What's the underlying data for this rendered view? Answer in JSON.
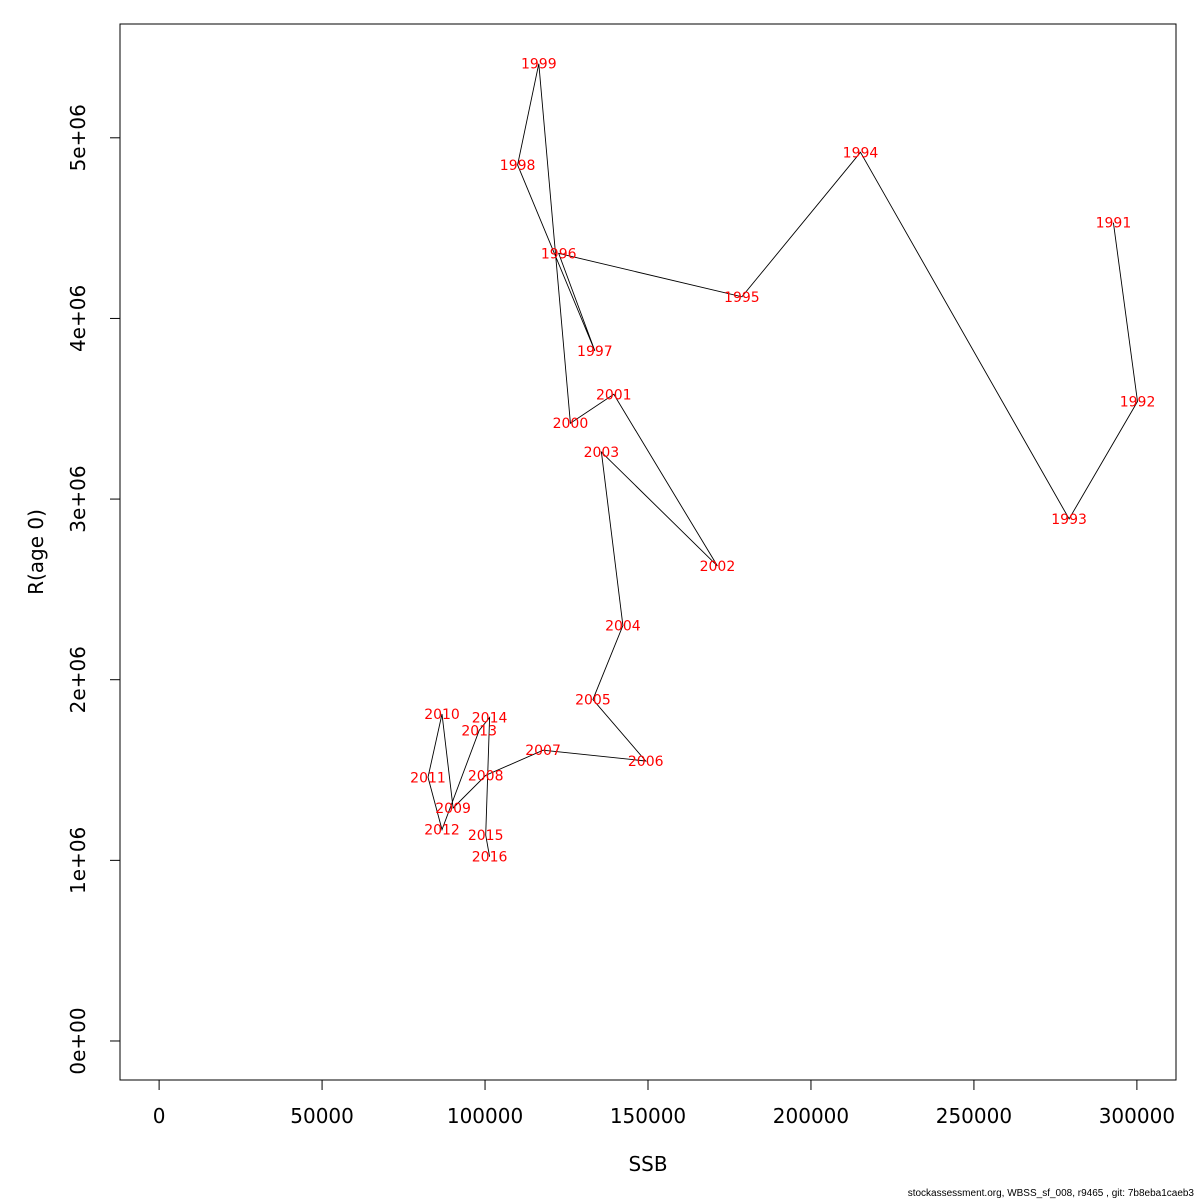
{
  "chart_data": {
    "type": "line",
    "xlabel": "SSB",
    "ylabel": "R(age 0)",
    "xlim": [
      -12000,
      312000
    ],
    "ylim": [
      -216000,
      5630000
    ],
    "x_ticks": [
      0,
      50000,
      100000,
      150000,
      200000,
      250000,
      300000
    ],
    "x_tick_labels": [
      "0",
      "50000",
      "100000",
      "150000",
      "200000",
      "250000",
      "300000"
    ],
    "y_ticks": [
      0,
      1000000,
      2000000,
      3000000,
      4000000,
      5000000
    ],
    "y_tick_labels": [
      "0e+00",
      "1e+06",
      "2e+06",
      "3e+06",
      "4e+06",
      "5e+06"
    ],
    "line_color": "#000000",
    "label_color": "#ff0000",
    "points": [
      {
        "label": "1991",
        "x": 292800,
        "y": 4530000
      },
      {
        "label": "1992",
        "x": 300200,
        "y": 3540000
      },
      {
        "label": "1993",
        "x": 279200,
        "y": 2890000
      },
      {
        "label": "1994",
        "x": 215200,
        "y": 4920000
      },
      {
        "label": "1995",
        "x": 178800,
        "y": 4120000
      },
      {
        "label": "1996",
        "x": 122600,
        "y": 4360000
      },
      {
        "label": "1997",
        "x": 133700,
        "y": 3820000
      },
      {
        "label": "1998",
        "x": 110000,
        "y": 4850000
      },
      {
        "label": "1999",
        "x": 116500,
        "y": 5410000
      },
      {
        "label": "2000",
        "x": 126200,
        "y": 3420000
      },
      {
        "label": "2001",
        "x": 139500,
        "y": 3580000
      },
      {
        "label": "2002",
        "x": 171300,
        "y": 2630000
      },
      {
        "label": "2003",
        "x": 135700,
        "y": 3260000
      },
      {
        "label": "2004",
        "x": 142300,
        "y": 2300000
      },
      {
        "label": "2005",
        "x": 133100,
        "y": 1890000
      },
      {
        "label": "2006",
        "x": 149300,
        "y": 1550000
      },
      {
        "label": "2007",
        "x": 117800,
        "y": 1610000
      },
      {
        "label": "2008",
        "x": 100200,
        "y": 1470000
      },
      {
        "label": "2009",
        "x": 90200,
        "y": 1290000
      },
      {
        "label": "2010",
        "x": 86800,
        "y": 1810000
      },
      {
        "label": "2011",
        "x": 82500,
        "y": 1460000
      },
      {
        "label": "2012",
        "x": 86800,
        "y": 1170000
      },
      {
        "label": "2013",
        "x": 98200,
        "y": 1720000
      },
      {
        "label": "2014",
        "x": 101400,
        "y": 1790000
      },
      {
        "label": "2015",
        "x": 100200,
        "y": 1140000
      },
      {
        "label": "2016",
        "x": 101400,
        "y": 1020000
      }
    ]
  },
  "footer": {
    "text": "stockassessment.org, WBSS_sf_008, r9465 , git: 7b8eba1caeb3"
  }
}
